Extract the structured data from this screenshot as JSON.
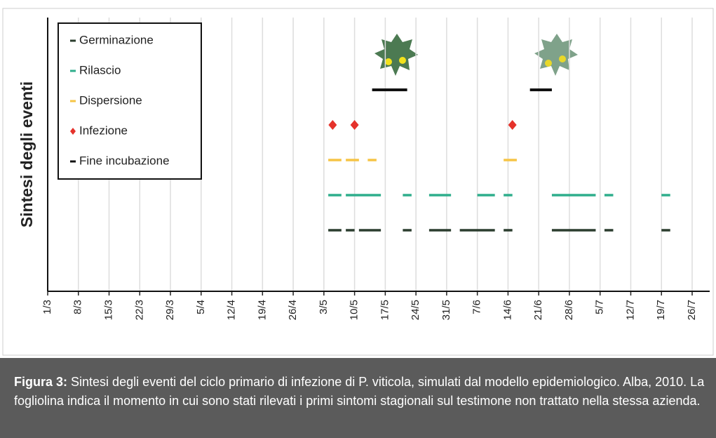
{
  "chart_data": {
    "type": "timeline",
    "ylabel": "Sintesi degli eventi",
    "xlim": [
      0,
      151
    ],
    "xticks": [
      {
        "value": 0,
        "label": "1/3"
      },
      {
        "value": 7,
        "label": "8/3"
      },
      {
        "value": 14,
        "label": "15/3"
      },
      {
        "value": 21,
        "label": "22/3"
      },
      {
        "value": 28,
        "label": "29/3"
      },
      {
        "value": 35,
        "label": "5/4"
      },
      {
        "value": 42,
        "label": "12/4"
      },
      {
        "value": 49,
        "label": "19/4"
      },
      {
        "value": 56,
        "label": "26/4"
      },
      {
        "value": 63,
        "label": "3/5"
      },
      {
        "value": 70,
        "label": "10/5"
      },
      {
        "value": 77,
        "label": "17/5"
      },
      {
        "value": 84,
        "label": "24/5"
      },
      {
        "value": 91,
        "label": "31/5"
      },
      {
        "value": 98,
        "label": "7/6"
      },
      {
        "value": 105,
        "label": "14/6"
      },
      {
        "value": 112,
        "label": "21/6"
      },
      {
        "value": 119,
        "label": "28/6"
      },
      {
        "value": 126,
        "label": "5/7"
      },
      {
        "value": 133,
        "label": "12/7"
      },
      {
        "value": 140,
        "label": "19/7"
      },
      {
        "value": 147,
        "label": "26/7"
      }
    ],
    "grid": true,
    "legend": "upper left",
    "series": [
      {
        "name": "Germinazione",
        "color": "#2b3d2e",
        "marker": "dash",
        "values": [
          [
            64,
            67
          ],
          [
            68,
            70
          ],
          [
            71,
            76
          ],
          [
            81,
            83
          ],
          [
            87,
            92
          ],
          [
            94,
            102
          ],
          [
            104,
            106
          ],
          [
            115,
            125
          ],
          [
            127,
            129
          ],
          [
            140,
            142
          ]
        ]
      },
      {
        "name": "Rilascio",
        "color": "#2fae8c",
        "marker": "dash",
        "values": [
          [
            64,
            67
          ],
          [
            68,
            76
          ],
          [
            81,
            83
          ],
          [
            87,
            92
          ],
          [
            98,
            102
          ],
          [
            104,
            106
          ],
          [
            115,
            125
          ],
          [
            127,
            129
          ],
          [
            140,
            142
          ]
        ]
      },
      {
        "name": "Dispersione",
        "color": "#f6c445",
        "marker": "dash",
        "values": [
          [
            64,
            67
          ],
          [
            68,
            71
          ],
          [
            73,
            75
          ],
          [
            104,
            107
          ]
        ]
      },
      {
        "name": "Infezione",
        "color": "#e5322b",
        "marker": "diamond",
        "values": [
          65,
          70,
          106
        ]
      },
      {
        "name": "Fine incubazione",
        "color": "#111111",
        "marker": "dash",
        "values": [
          [
            74,
            82
          ],
          [
            110,
            115
          ]
        ]
      }
    ]
  },
  "caption": {
    "label": "Figura 3:",
    "text": "Sintesi degli eventi del ciclo primario di infezione di P. viticola, simulati dal modello epidemiologico. Alba, 2010. La fogliolina indica il momento in cui sono stati rilevati i primi sintomi stagionali sul testimone non trattato nella stessa azienda."
  }
}
